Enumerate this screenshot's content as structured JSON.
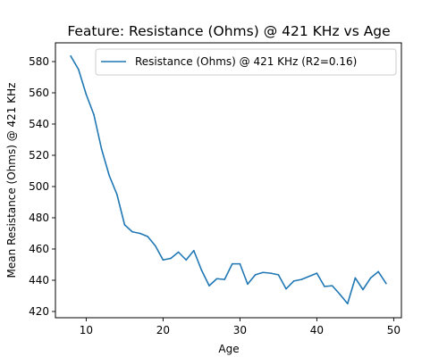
{
  "chart_data": {
    "type": "line",
    "title": "Feature: Resistance (Ohms) @ 421 KHz vs Age",
    "xlabel": "Age",
    "ylabel": "Mean Resistance (Ohms) @ 421 KHz",
    "xlim": [
      6.0,
      51.0
    ],
    "ylim": [
      416.0,
      592.0
    ],
    "xticks": [
      10,
      20,
      30,
      40,
      50
    ],
    "yticks": [
      420,
      440,
      460,
      480,
      500,
      520,
      540,
      560,
      580
    ],
    "grid": false,
    "legend_position": "upper right",
    "series": [
      {
        "name": "Resistance (Ohms) @ 421 KHz (R2=0.16)",
        "color": "#1f77b4",
        "x": [
          8,
          9,
          10,
          11,
          12,
          13,
          14,
          15,
          16,
          17,
          18,
          19,
          20,
          21,
          22,
          23,
          24,
          25,
          26,
          27,
          28,
          29,
          30,
          31,
          32,
          33,
          34,
          35,
          36,
          37,
          38,
          39,
          40,
          41,
          42,
          43,
          44,
          45,
          46,
          47,
          48,
          49
        ],
        "y": [
          583.5,
          575,
          559,
          546,
          524,
          507,
          495,
          475.5,
          471,
          470,
          468,
          462,
          453,
          454,
          458,
          453,
          459,
          446.5,
          436.5,
          441,
          440.5,
          450.5,
          450.5,
          437.5,
          443.5,
          445,
          444.5,
          443.5,
          434.5,
          439.5,
          440.5,
          442.5,
          444.5,
          436,
          436.5,
          431,
          425,
          441.5,
          434,
          441.5,
          445.5,
          438
        ]
      }
    ]
  }
}
